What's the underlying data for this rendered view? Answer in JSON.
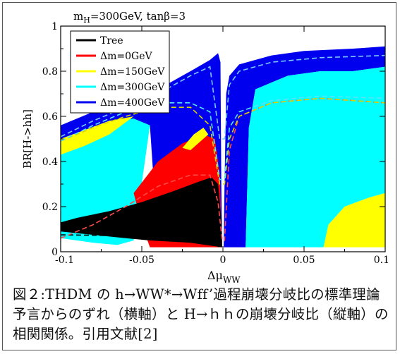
{
  "chart_data": {
    "type": "area",
    "title": "m_H=300GeV, tanβ=3",
    "title_main": "m",
    "title_sub": "H",
    "title_rest": "=300GeV, tanβ=3",
    "xlabel": "Δμ_WW",
    "xlabel_main": "Δμ",
    "xlabel_sub": "WW",
    "ylabel": "BR[H->hh]",
    "xlim": [
      -0.1,
      0.1
    ],
    "ylim": [
      0,
      1
    ],
    "xticks": [
      "-0.1",
      "-0.05",
      "0",
      "0.05",
      "0.1"
    ],
    "xtick_values": [
      -0.1,
      -0.05,
      0,
      0.05,
      0.1
    ],
    "yticks": [
      "0",
      "0.2",
      "0.4",
      "0.6",
      "0.8",
      "1"
    ],
    "ytick_values": [
      0,
      0.2,
      0.4,
      0.6,
      0.8,
      1
    ],
    "legend_position": "top-left",
    "series": [
      {
        "name": "Tree",
        "color": "#000000",
        "regions": [
          [
            [
              -0.1,
              0.13
            ],
            [
              -0.09,
              0.15
            ],
            [
              -0.07,
              0.18
            ],
            [
              -0.05,
              0.22
            ],
            [
              -0.03,
              0.27
            ],
            [
              -0.015,
              0.31
            ],
            [
              -0.007,
              0.33
            ],
            [
              -0.003,
              0.3
            ],
            [
              -0.001,
              0.15
            ],
            [
              -0.0005,
              0.02
            ],
            [
              -0.02,
              0.04
            ],
            [
              -0.045,
              0.05
            ],
            [
              -0.06,
              0.06
            ],
            [
              -0.08,
              0.075
            ],
            [
              -0.1,
              0.09
            ]
          ]
        ],
        "curve": [
          [
            -0.1,
            0.075
          ],
          [
            -0.08,
            0.073
          ],
          [
            -0.06,
            0.07
          ],
          [
            -0.04,
            0.066
          ],
          [
            -0.02,
            0.058
          ],
          [
            -0.008,
            0.045
          ],
          [
            -0.002,
            0.02
          ]
        ]
      },
      {
        "name": "Δm=0GeV",
        "color": "#ff0000",
        "regions": [
          [
            [
              -0.055,
              0.26
            ],
            [
              -0.04,
              0.4
            ],
            [
              -0.025,
              0.48
            ],
            [
              -0.012,
              0.52
            ],
            [
              -0.005,
              0.5
            ],
            [
              -0.002,
              0.35
            ],
            [
              -0.0005,
              0.02
            ],
            [
              -0.045,
              0.02
            ],
            [
              -0.05,
              0.12
            ]
          ]
        ],
        "curve": [
          [
            -0.1,
            0.06
          ],
          [
            -0.08,
            0.12
          ],
          [
            -0.06,
            0.2
          ],
          [
            -0.04,
            0.29
          ],
          [
            -0.02,
            0.34
          ],
          [
            -0.008,
            0.34
          ],
          [
            -0.003,
            0.22
          ],
          [
            -0.0005,
            0.05
          ],
          [
            0.001,
            0.05
          ],
          [
            0.004,
            0.45
          ],
          [
            0.01,
            0.6
          ],
          [
            0.03,
            0.66
          ],
          [
            0.06,
            0.68
          ],
          [
            0.1,
            0.66
          ]
        ]
      },
      {
        "name": "Δm=150GeV",
        "color": "#ffff00",
        "regions": [
          [
            [
              -0.1,
              0.5
            ],
            [
              -0.085,
              0.54
            ],
            [
              -0.07,
              0.58
            ],
            [
              -0.055,
              0.6
            ],
            [
              -0.07,
              0.52
            ],
            [
              -0.085,
              0.47
            ],
            [
              -0.1,
              0.43
            ]
          ],
          [
            [
              -0.025,
              0.46
            ],
            [
              -0.018,
              0.52
            ],
            [
              -0.012,
              0.55
            ],
            [
              -0.009,
              0.52
            ],
            [
              -0.02,
              0.45
            ]
          ],
          [
            [
              0.062,
              0.02
            ],
            [
              0.065,
              0.12
            ],
            [
              0.075,
              0.2
            ],
            [
              0.09,
              0.24
            ],
            [
              0.1,
              0.26
            ],
            [
              0.1,
              0.02
            ]
          ]
        ],
        "curve": [
          [
            -0.1,
            0.49
          ],
          [
            -0.08,
            0.55
          ],
          [
            -0.06,
            0.6
          ],
          [
            -0.04,
            0.64
          ],
          [
            -0.02,
            0.64
          ],
          [
            -0.008,
            0.56
          ],
          [
            -0.002,
            0.3
          ],
          [
            0.001,
            0.3
          ],
          [
            0.004,
            0.5
          ],
          [
            0.01,
            0.6
          ],
          [
            0.03,
            0.66
          ],
          [
            0.06,
            0.68
          ],
          [
            0.1,
            0.66
          ]
        ]
      },
      {
        "name": "Δm=300GeV",
        "color": "#00ffff",
        "regions": [
          [
            [
              -0.1,
              0.13
            ],
            [
              -0.1,
              0.5
            ],
            [
              -0.085,
              0.54
            ],
            [
              -0.07,
              0.58
            ],
            [
              -0.055,
              0.59
            ],
            [
              -0.045,
              0.56
            ],
            [
              -0.055,
              0.05
            ],
            [
              -0.065,
              0.03
            ],
            [
              -0.08,
              0.04
            ],
            [
              -0.1,
              0.06
            ]
          ],
          [
            [
              0.014,
              0.02
            ],
            [
              0.016,
              0.55
            ],
            [
              0.02,
              0.72
            ],
            [
              0.04,
              0.78
            ],
            [
              0.06,
              0.8
            ],
            [
              0.08,
              0.8
            ],
            [
              0.1,
              0.82
            ],
            [
              0.1,
              0.26
            ],
            [
              0.09,
              0.24
            ],
            [
              0.075,
              0.2
            ],
            [
              0.065,
              0.12
            ],
            [
              0.062,
              0.02
            ]
          ]
        ],
        "curve": [
          [
            -0.1,
            0.49
          ],
          [
            -0.08,
            0.56
          ],
          [
            -0.06,
            0.62
          ],
          [
            -0.04,
            0.66
          ],
          [
            -0.02,
            0.66
          ],
          [
            -0.008,
            0.62
          ],
          [
            -0.002,
            0.32
          ],
          [
            0.001,
            0.32
          ],
          [
            0.004,
            0.55
          ],
          [
            0.01,
            0.62
          ],
          [
            0.03,
            0.67
          ],
          [
            0.06,
            0.69
          ],
          [
            0.1,
            0.68
          ]
        ]
      },
      {
        "name": "Δm=400GeV",
        "color": "#0000ee",
        "regions": [
          [
            [
              -0.1,
              0.5
            ],
            [
              -0.1,
              0.56
            ],
            [
              -0.08,
              0.62
            ],
            [
              -0.06,
              0.66
            ],
            [
              -0.04,
              0.72
            ],
            [
              -0.02,
              0.8
            ],
            [
              -0.008,
              0.85
            ],
            [
              -0.003,
              0.88
            ],
            [
              -0.0015,
              0.84
            ],
            [
              -0.001,
              0.3
            ],
            [
              -0.0005,
              0.02
            ],
            [
              -0.045,
              0.05
            ],
            [
              -0.04,
              0.03
            ],
            [
              -0.045,
              0.56
            ],
            [
              -0.055,
              0.59
            ],
            [
              -0.07,
              0.58
            ],
            [
              -0.085,
              0.54
            ]
          ],
          [
            [
              0.0005,
              0.02
            ],
            [
              0.001,
              0.3
            ],
            [
              0.002,
              0.7
            ],
            [
              0.004,
              0.78
            ],
            [
              0.01,
              0.83
            ],
            [
              0.03,
              0.87
            ],
            [
              0.05,
              0.89
            ],
            [
              0.08,
              0.9
            ],
            [
              0.1,
              0.91
            ],
            [
              0.1,
              0.82
            ],
            [
              0.08,
              0.8
            ],
            [
              0.06,
              0.8
            ],
            [
              0.04,
              0.78
            ],
            [
              0.02,
              0.72
            ],
            [
              0.016,
              0.55
            ],
            [
              0.014,
              0.02
            ]
          ]
        ],
        "curve": [
          [
            -0.1,
            0.51
          ],
          [
            -0.08,
            0.58
          ],
          [
            -0.06,
            0.64
          ],
          [
            -0.04,
            0.7
          ],
          [
            -0.02,
            0.78
          ],
          [
            -0.008,
            0.82
          ],
          [
            -0.002,
            0.5
          ],
          [
            0.001,
            0.5
          ],
          [
            0.004,
            0.74
          ],
          [
            0.01,
            0.8
          ],
          [
            0.03,
            0.84
          ],
          [
            0.06,
            0.86
          ],
          [
            0.1,
            0.87
          ]
        ]
      }
    ]
  },
  "caption": "図２:THDM の h→WW*→Wff’過程崩壊分岐比の標準理論予言からのずれ（横軸）と H→ｈｈの崩壊分岐比（縦軸）の相関関係。引用文献[2]"
}
